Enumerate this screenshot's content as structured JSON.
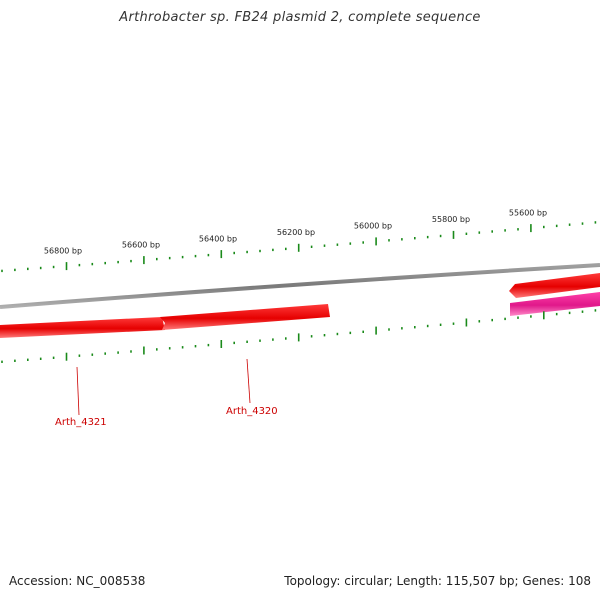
{
  "title": "Arthrobacter sp. FB24 plasmid 2, complete sequence",
  "footer": {
    "accession": "Accession: NC_008538",
    "summary": "Topology: circular; Length: 115,507 bp; Genes: 108"
  },
  "scale_labels": [
    "56800 bp",
    "56600 bp",
    "56400 bp",
    "56200 bp",
    "56000 bp",
    "55800 bp",
    "55600 bp"
  ],
  "genes": [
    {
      "label": "Arth_4321",
      "strand": "forward"
    },
    {
      "label": "Arth_4320",
      "strand": "forward"
    },
    {
      "label": "",
      "strand": "reverse"
    },
    {
      "label": "",
      "strand": "forward",
      "color": "#e0188a"
    }
  ],
  "colors": {
    "backbone": "#808080",
    "gene": "#ff0000",
    "gene_alt": "#e0188a",
    "tick": "#1a8a1a",
    "label": "#cc0000"
  }
}
